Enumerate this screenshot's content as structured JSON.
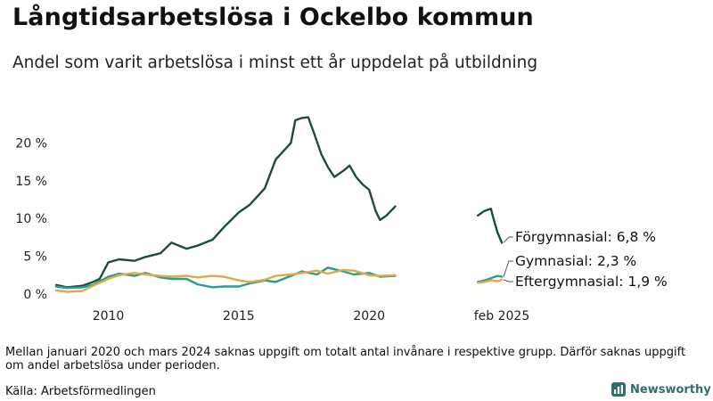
{
  "title": "Långtidsarbetslösa i Ockelbo kommun",
  "subtitle": "Andel som varit arbetslösa i minst ett år uppdelat på utbildning",
  "note": "Mellan januari 2020 och mars 2024 saknas uppgift om totalt antal invånare i respektive grupp. Därför saknas uppgift om andel arbetslösa under perioden.",
  "source": "Källa: Arbetsförmedlingen",
  "brand": "Newsworthy",
  "colors": {
    "forgymnasial": "#1f4a3f",
    "gymnasial": "#2a9d8f",
    "eftergymnasial": "#e0a94a",
    "brand": "#2f6f6b"
  },
  "chart_data": {
    "type": "line",
    "x_axis": {
      "range": [
        "2008-01",
        "2025-02"
      ],
      "ticks": [
        {
          "label": "2010",
          "value": "2010-01"
        },
        {
          "label": "2015",
          "value": "2015-01"
        },
        {
          "label": "2020",
          "value": "2020-01"
        },
        {
          "label": "feb 2025",
          "value": "2025-02"
        }
      ]
    },
    "y_axis": {
      "range": [
        0,
        25
      ],
      "ticks": [
        {
          "label": "0 %",
          "value": 0
        },
        {
          "label": "5 %",
          "value": 5
        },
        {
          "label": "10 %",
          "value": 10
        },
        {
          "label": "15 %",
          "value": 15
        },
        {
          "label": "20 %",
          "value": 20
        }
      ]
    },
    "grid": false,
    "legend": "end labels at right",
    "series": [
      {
        "name": "Förgymnasial",
        "end_label": "Förgymnasial: 6,8 %",
        "color_key": "forgymnasial",
        "segments": [
          [
            [
              "2008-01",
              1.2
            ],
            [
              "2008-06",
              0.9
            ],
            [
              "2009-01",
              1.1
            ],
            [
              "2009-06",
              1.6
            ],
            [
              "2009-09",
              2.0
            ],
            [
              "2010-01",
              4.2
            ],
            [
              "2010-06",
              4.6
            ],
            [
              "2011-01",
              4.4
            ],
            [
              "2011-06",
              4.9
            ],
            [
              "2012-01",
              5.4
            ],
            [
              "2012-06",
              6.8
            ],
            [
              "2013-01",
              6.0
            ],
            [
              "2013-06",
              6.4
            ],
            [
              "2014-01",
              7.2
            ],
            [
              "2014-06",
              8.8
            ],
            [
              "2015-01",
              10.8
            ],
            [
              "2015-06",
              11.8
            ],
            [
              "2016-01",
              14.0
            ],
            [
              "2016-06",
              17.8
            ],
            [
              "2017-01",
              20.0
            ],
            [
              "2017-03",
              23.0
            ],
            [
              "2017-06",
              23.3
            ],
            [
              "2017-09",
              23.4
            ],
            [
              "2017-12",
              21.0
            ],
            [
              "2018-03",
              18.5
            ],
            [
              "2018-06",
              16.8
            ],
            [
              "2018-09",
              15.5
            ],
            [
              "2019-01",
              16.3
            ],
            [
              "2019-04",
              17.0
            ],
            [
              "2019-07",
              15.5
            ],
            [
              "2019-10",
              14.5
            ],
            [
              "2020-01",
              13.8
            ],
            [
              "2020-04",
              11.0
            ],
            [
              "2020-06",
              9.8
            ],
            [
              "2020-09",
              10.4
            ],
            [
              "2021-01",
              11.6
            ]
          ],
          [
            [
              "2024-03",
              10.4
            ],
            [
              "2024-06",
              11.0
            ],
            [
              "2024-09",
              11.3
            ],
            [
              "2024-10",
              10.2
            ],
            [
              "2024-12",
              8.2
            ],
            [
              "2025-02",
              6.8
            ]
          ]
        ]
      },
      {
        "name": "Gymnasial",
        "end_label": "Gymnasial: 2,3 %",
        "color_key": "gymnasial",
        "segments": [
          [
            [
              "2008-01",
              1.0
            ],
            [
              "2008-06",
              0.8
            ],
            [
              "2009-01",
              0.9
            ],
            [
              "2009-06",
              1.2
            ],
            [
              "2010-01",
              2.3
            ],
            [
              "2010-06",
              2.7
            ],
            [
              "2011-01",
              2.4
            ],
            [
              "2011-06",
              2.8
            ],
            [
              "2012-01",
              2.2
            ],
            [
              "2012-06",
              2.0
            ],
            [
              "2013-01",
              2.0
            ],
            [
              "2013-06",
              1.3
            ],
            [
              "2014-01",
              0.9
            ],
            [
              "2014-06",
              1.0
            ],
            [
              "2015-01",
              1.0
            ],
            [
              "2015-06",
              1.4
            ],
            [
              "2016-01",
              1.8
            ],
            [
              "2016-06",
              1.6
            ],
            [
              "2017-01",
              2.4
            ],
            [
              "2017-06",
              3.0
            ],
            [
              "2018-01",
              2.6
            ],
            [
              "2018-06",
              3.5
            ],
            [
              "2019-01",
              3.0
            ],
            [
              "2019-06",
              2.6
            ],
            [
              "2020-01",
              2.8
            ],
            [
              "2020-06",
              2.3
            ],
            [
              "2021-01",
              2.4
            ]
          ],
          [
            [
              "2024-03",
              1.6
            ],
            [
              "2024-06",
              1.8
            ],
            [
              "2024-09",
              2.1
            ],
            [
              "2024-12",
              2.4
            ],
            [
              "2025-02",
              2.3
            ]
          ]
        ]
      },
      {
        "name": "Eftergymnasial",
        "end_label": "Eftergymnasial: 1,9 %",
        "color_key": "eftergymnasial",
        "segments": [
          [
            [
              "2008-01",
              0.5
            ],
            [
              "2008-06",
              0.3
            ],
            [
              "2009-01",
              0.4
            ],
            [
              "2009-06",
              1.1
            ],
            [
              "2010-01",
              2.0
            ],
            [
              "2010-06",
              2.5
            ],
            [
              "2011-01",
              2.8
            ],
            [
              "2011-06",
              2.6
            ],
            [
              "2012-01",
              2.4
            ],
            [
              "2012-06",
              2.3
            ],
            [
              "2013-01",
              2.4
            ],
            [
              "2013-06",
              2.2
            ],
            [
              "2014-01",
              2.4
            ],
            [
              "2014-06",
              2.3
            ],
            [
              "2015-01",
              1.8
            ],
            [
              "2015-06",
              1.6
            ],
            [
              "2016-01",
              1.9
            ],
            [
              "2016-06",
              2.4
            ],
            [
              "2017-01",
              2.6
            ],
            [
              "2017-06",
              2.8
            ],
            [
              "2018-01",
              3.1
            ],
            [
              "2018-06",
              2.7
            ],
            [
              "2019-01",
              3.2
            ],
            [
              "2019-06",
              3.1
            ],
            [
              "2020-01",
              2.5
            ],
            [
              "2020-06",
              2.4
            ],
            [
              "2021-01",
              2.5
            ]
          ],
          [
            [
              "2024-03",
              1.5
            ],
            [
              "2024-06",
              1.6
            ],
            [
              "2024-09",
              1.8
            ],
            [
              "2024-12",
              1.7
            ],
            [
              "2025-02",
              1.9
            ]
          ]
        ]
      }
    ]
  }
}
